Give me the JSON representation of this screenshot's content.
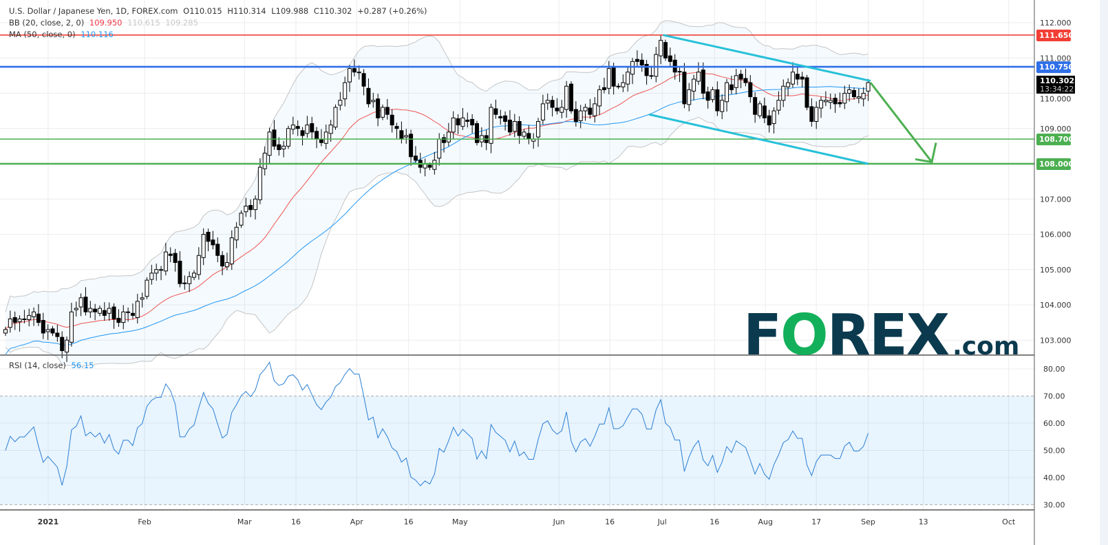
{
  "header": {
    "symbol": "U.S. Dollar / Japanese Yen, 1D, FOREX.com",
    "open": "O110.015",
    "high": "H110.314",
    "low": "L109.988",
    "close": "C110.302",
    "change": "+0.287 (+0.26%)",
    "bb_label": "BB (20, close, 2, 0)",
    "bb_basis": "109.950",
    "bb_upper": "110.615",
    "bb_lower": "109.285",
    "ma_label": "MA (50, close, 0)",
    "ma_value": "110.116",
    "rsi_label": "RSI (14, close)",
    "rsi_value": "56.15"
  },
  "colors": {
    "up": "#ffffff",
    "down": "#000000",
    "bb_basis": "#ef5350",
    "bb_band": "#c4c4c4",
    "ma": "#2196f3",
    "rsi": "#2a7fd4",
    "red_level": "#f23f36",
    "blue_level": "#2f6fe8",
    "green_level": "#4caf50",
    "channel": "#26c0d8",
    "arrow": "#4caf50",
    "logo_dark": "#0b3a4e",
    "logo_green": "#12b05a"
  },
  "logo": {
    "left": "F",
    "o": "O",
    "right": "REX",
    "suffix": ".com"
  },
  "chart_data": {
    "type": "candlestick",
    "title": "U.S. Dollar / Japanese Yen, 1D",
    "price_range": [
      102.5,
      112.3
    ],
    "price_ticks": [
      "112.000",
      "111.000",
      "110.000",
      "109.000",
      "108.000",
      "107.000",
      "106.000",
      "105.000",
      "104.000",
      "103.000"
    ],
    "rsi_ticks": [
      "80.00",
      "70.00",
      "60.00",
      "50.00",
      "40.00",
      "30.00"
    ],
    "rsi_range": [
      28,
      84
    ],
    "time_ticks": [
      {
        "label": "2021",
        "bar": 9.05,
        "bold": true
      },
      {
        "label": "Feb",
        "bar": 29.5
      },
      {
        "label": "Mar",
        "bar": 50.7
      },
      {
        "label": "16",
        "bar": 61.6
      },
      {
        "label": "Apr",
        "bar": 74.5
      },
      {
        "label": "16",
        "bar": 85.5
      },
      {
        "label": "May",
        "bar": 96.4
      },
      {
        "label": "Jun",
        "bar": 117.4
      },
      {
        "label": "16",
        "bar": 128.2
      },
      {
        "label": "Jul",
        "bar": 139.3
      },
      {
        "label": "16",
        "bar": 150.4
      },
      {
        "label": "Aug",
        "bar": 161.2
      },
      {
        "label": "17",
        "bar": 172
      },
      {
        "label": "Sep",
        "bar": 183
      },
      {
        "label": "13",
        "bar": 194.7
      },
      {
        "label": "Oct",
        "bar": 212.8
      }
    ],
    "closes": [
      103.3,
      103.6,
      103.5,
      103.6,
      103.6,
      103.7,
      103.8,
      103.5,
      103.2,
      103.3,
      103.2,
      103.1,
      102.7,
      103.0,
      103.8,
      103.9,
      104.2,
      103.8,
      103.9,
      103.8,
      103.9,
      103.7,
      103.9,
      103.6,
      103.5,
      103.8,
      103.8,
      103.7,
      104.1,
      104.2,
      104.7,
      104.9,
      105.0,
      105.0,
      105.5,
      105.4,
      105.2,
      104.6,
      104.6,
      104.8,
      104.9,
      105.4,
      106.0,
      105.8,
      105.7,
      105.4,
      105.1,
      105.2,
      105.9,
      106.2,
      106.6,
      106.8,
      106.7,
      107.0,
      107.9,
      108.3,
      108.9,
      108.5,
      108.4,
      108.5,
      109.0,
      109.1,
      109.0,
      108.8,
      109.1,
      108.9,
      108.7,
      108.6,
      108.9,
      109.1,
      109.6,
      109.8,
      110.3,
      110.7,
      110.6,
      110.6,
      110.2,
      109.7,
      109.8,
      109.3,
      109.6,
      109.4,
      109.1,
      109.0,
      108.7,
      108.8,
      108.2,
      108.1,
      107.9,
      108.0,
      107.9,
      108.1,
      108.7,
      108.6,
      108.9,
      109.3,
      109.1,
      109.3,
      109.2,
      109.1,
      108.6,
      108.8,
      108.6,
      109.6,
      109.4,
      109.3,
      109.2,
      108.9,
      109.2,
      108.8,
      108.9,
      108.7,
      108.7,
      109.2,
      109.7,
      109.8,
      109.6,
      109.5,
      109.6,
      110.2,
      109.5,
      109.2,
      109.5,
      109.6,
      109.4,
      109.7,
      110.1,
      110.1,
      110.7,
      110.2,
      110.2,
      110.3,
      110.6,
      110.9,
      110.9,
      110.8,
      110.5,
      110.5,
      111.1,
      111.5,
      111.0,
      110.9,
      110.6,
      110.6,
      109.7,
      110.1,
      110.4,
      110.6,
      110.0,
      109.8,
      110.1,
      109.5,
      109.8,
      110.3,
      110.1,
      110.5,
      110.4,
      110.3,
      109.9,
      109.4,
      109.7,
      109.3,
      109.1,
      109.5,
      109.8,
      110.2,
      110.3,
      110.6,
      110.4,
      110.4,
      109.6,
      109.2,
      109.6,
      109.8,
      109.8,
      109.8,
      109.7,
      109.7,
      110.0,
      110.1,
      109.9,
      109.9,
      110.0,
      110.302
    ],
    "levels": [
      {
        "price": 111.65,
        "label": "111.650",
        "color": "#f23f36",
        "width": 1.6
      },
      {
        "price": 110.75,
        "label": "110.750",
        "color": "#2f6fe8",
        "width": 2.6
      },
      {
        "price": 108.7,
        "label": "108.700",
        "color": "#4caf50",
        "width": 1.6
      },
      {
        "price": 108.0,
        "label": "108.000",
        "color": "#4caf50",
        "width": 2.6
      }
    ],
    "last_price": {
      "value": "110.302",
      "countdown": "13:34:22"
    },
    "channel": [
      {
        "from": [
          139.5,
          111.65
        ],
        "to": [
          183.5,
          110.35
        ]
      },
      {
        "from": [
          136.5,
          109.4
        ],
        "to": [
          183,
          108.0
        ]
      }
    ],
    "arrow": {
      "from": [
        183.5,
        110.3
      ],
      "to": [
        196.5,
        108.05
      ]
    },
    "indicators": [
      "BB (20, close, 2, 0)",
      "MA (50, close, 0)",
      "RSI (14, close)"
    ]
  }
}
